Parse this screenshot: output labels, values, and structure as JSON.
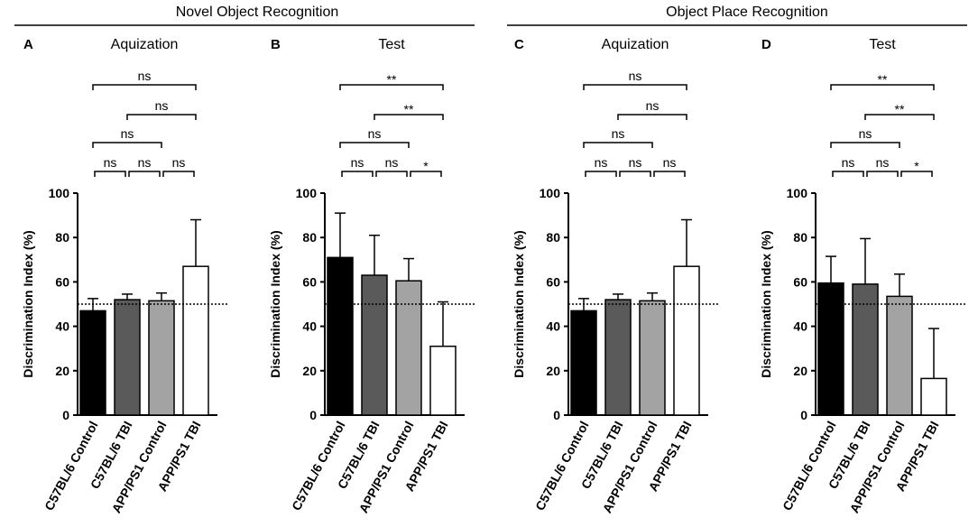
{
  "groups": [
    {
      "title": "Novel Object Recognition"
    },
    {
      "title": "Object Place Recognition"
    }
  ],
  "chart_data": [
    {
      "type": "bar",
      "panel": "A",
      "title": "Aquization",
      "categories": [
        "C57BL/6 Control",
        "C57BL/6 TBI",
        "APP/PS1 Control",
        "APP/PS1 TBI"
      ],
      "values": [
        47,
        52,
        51.5,
        67
      ],
      "errors": [
        5.5,
        2.5,
        3.5,
        21
      ],
      "colors": [
        "#000000",
        "#5a5a5a",
        "#a3a3a3",
        "#ffffff"
      ],
      "ylabel": "Discrimination Index (%)",
      "ylim": [
        0,
        100
      ],
      "yticks": [
        "0",
        "20",
        "40",
        "60",
        "80",
        "100"
      ],
      "reference_line": 50,
      "comparisons": [
        {
          "from": 0,
          "to": 3,
          "label": "ns"
        },
        {
          "from": 1,
          "to": 3,
          "label": "ns"
        },
        {
          "from": 0,
          "to": 2,
          "label": "ns"
        },
        {
          "from": 0,
          "to": 1,
          "label": "ns"
        },
        {
          "from": 1,
          "to": 2,
          "label": "ns"
        },
        {
          "from": 2,
          "to": 3,
          "label": "ns"
        }
      ]
    },
    {
      "type": "bar",
      "panel": "B",
      "title": "Test",
      "categories": [
        "C57BL/6 Control",
        "C57BL/6 TBI",
        "APP/PS1 Control",
        "APP/PS1 TBI"
      ],
      "values": [
        71,
        63,
        60.5,
        31
      ],
      "errors": [
        20,
        18,
        10,
        20
      ],
      "colors": [
        "#000000",
        "#5a5a5a",
        "#a3a3a3",
        "#ffffff"
      ],
      "ylabel": "Discrimination Index (%)",
      "ylim": [
        0,
        100
      ],
      "yticks": [
        "0",
        "20",
        "40",
        "60",
        "80",
        "100"
      ],
      "reference_line": 50,
      "comparisons": [
        {
          "from": 0,
          "to": 3,
          "label": "**"
        },
        {
          "from": 1,
          "to": 3,
          "label": "**"
        },
        {
          "from": 0,
          "to": 2,
          "label": "ns"
        },
        {
          "from": 0,
          "to": 1,
          "label": "ns"
        },
        {
          "from": 1,
          "to": 2,
          "label": "ns"
        },
        {
          "from": 2,
          "to": 3,
          "label": "*"
        }
      ]
    },
    {
      "type": "bar",
      "panel": "C",
      "title": "Aquization",
      "categories": [
        "C57BL/6 Control",
        "C57BL/6 TBI",
        "APP/PS1 Control",
        "APP/PS1 TBI"
      ],
      "values": [
        47,
        52,
        51.5,
        67
      ],
      "errors": [
        5.5,
        2.5,
        3.5,
        21
      ],
      "colors": [
        "#000000",
        "#5a5a5a",
        "#a3a3a3",
        "#ffffff"
      ],
      "ylabel": "Discrimination Index (%)",
      "ylim": [
        0,
        100
      ],
      "yticks": [
        "0",
        "20",
        "40",
        "60",
        "80",
        "100"
      ],
      "reference_line": 50,
      "comparisons": [
        {
          "from": 0,
          "to": 3,
          "label": "ns"
        },
        {
          "from": 1,
          "to": 3,
          "label": "ns"
        },
        {
          "from": 0,
          "to": 2,
          "label": "ns"
        },
        {
          "from": 0,
          "to": 1,
          "label": "ns"
        },
        {
          "from": 1,
          "to": 2,
          "label": "ns"
        },
        {
          "from": 2,
          "to": 3,
          "label": "ns"
        }
      ]
    },
    {
      "type": "bar",
      "panel": "D",
      "title": "Test",
      "categories": [
        "C57BL/6 Control",
        "C57BL/6 TBI",
        "APP/PS1 Control",
        "APP/PS1 TBI"
      ],
      "values": [
        59.5,
        59,
        53.5,
        16.5
      ],
      "errors": [
        12,
        20.5,
        10,
        22.5
      ],
      "colors": [
        "#000000",
        "#5a5a5a",
        "#a3a3a3",
        "#ffffff"
      ],
      "ylabel": "Discrimination Index (%)",
      "ylim": [
        0,
        100
      ],
      "yticks": [
        "0",
        "20",
        "40",
        "60",
        "80",
        "100"
      ],
      "reference_line": 50,
      "comparisons": [
        {
          "from": 0,
          "to": 3,
          "label": "**"
        },
        {
          "from": 1,
          "to": 3,
          "label": "**"
        },
        {
          "from": 0,
          "to": 2,
          "label": "ns"
        },
        {
          "from": 0,
          "to": 1,
          "label": "ns"
        },
        {
          "from": 1,
          "to": 2,
          "label": "ns"
        },
        {
          "from": 2,
          "to": 3,
          "label": "*"
        }
      ]
    }
  ]
}
